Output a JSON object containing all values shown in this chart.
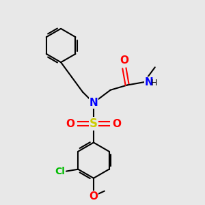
{
  "bg_color": "#e8e8e8",
  "bond_color": "#000000",
  "N_color": "#0000ff",
  "O_color": "#ff0000",
  "S_color": "#cccc00",
  "Cl_color": "#00bb00",
  "lw": 1.5,
  "figsize": [
    3.0,
    3.0
  ],
  "dpi": 100,
  "xlim": [
    0,
    10
  ],
  "ylim": [
    0,
    10
  ]
}
